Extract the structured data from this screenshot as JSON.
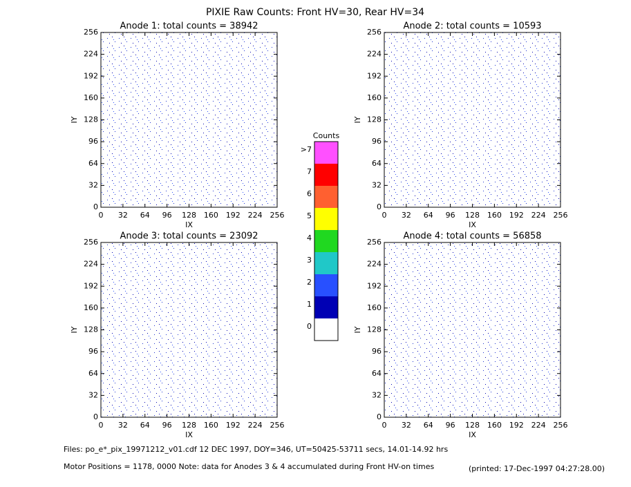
{
  "title": "PIXIE Raw Counts:  Front HV=30, Rear HV=34",
  "chart_data": [
    {
      "type": "heatmap",
      "title": "Anode 1: total counts = 38942",
      "xlabel": "IX",
      "ylabel": "IY",
      "xlim": [
        0,
        256
      ],
      "ylim": [
        0,
        256
      ],
      "xticks": [
        0,
        32,
        64,
        96,
        128,
        160,
        192,
        224,
        256
      ],
      "yticks": [
        0,
        32,
        64,
        96,
        128,
        160,
        192,
        224,
        256
      ]
    },
    {
      "type": "heatmap",
      "title": "Anode 2: total counts = 10593",
      "xlabel": "IX",
      "ylabel": "IY",
      "xlim": [
        0,
        256
      ],
      "ylim": [
        0,
        256
      ],
      "xticks": [
        0,
        32,
        64,
        96,
        128,
        160,
        192,
        224,
        256
      ],
      "yticks": [
        0,
        32,
        64,
        96,
        128,
        160,
        192,
        224,
        256
      ]
    },
    {
      "type": "heatmap",
      "title": "Anode 3: total counts = 23092",
      "xlabel": "IX",
      "ylabel": "IY",
      "xlim": [
        0,
        256
      ],
      "ylim": [
        0,
        256
      ],
      "xticks": [
        0,
        32,
        64,
        96,
        128,
        160,
        192,
        224,
        256
      ],
      "yticks": [
        0,
        32,
        64,
        96,
        128,
        160,
        192,
        224,
        256
      ]
    },
    {
      "type": "heatmap",
      "title": "Anode 4: total counts = 56858",
      "xlabel": "IX",
      "ylabel": "IY",
      "xlim": [
        0,
        256
      ],
      "ylim": [
        0,
        256
      ],
      "xticks": [
        0,
        32,
        64,
        96,
        128,
        160,
        192,
        224,
        256
      ],
      "yticks": [
        0,
        32,
        64,
        96,
        128,
        160,
        192,
        224,
        256
      ]
    }
  ],
  "colorbar": {
    "title": "Counts",
    "labels": [
      "0",
      "1",
      "2",
      "3",
      "4",
      "5",
      "6",
      "7",
      ">7"
    ],
    "colors": [
      "#ffffff",
      "#0000b4",
      "#2850ff",
      "#20c8c8",
      "#20d820",
      "#ffff00",
      "#ff6030",
      "#ff0000",
      "#ff50ff"
    ]
  },
  "footer": {
    "files": "Files: po_e*_pix_19971212_v01.cdf    12 DEC 1997, DOY=346, UT=50425-53711 secs, 14.01-14.92 hrs",
    "motor": "Motor Positions = 1178, 0000   Note: data for Anodes 3 & 4 accumulated during Front HV-on times",
    "printed": "(printed: 17-Dec-1997 04:27:28.00)"
  }
}
